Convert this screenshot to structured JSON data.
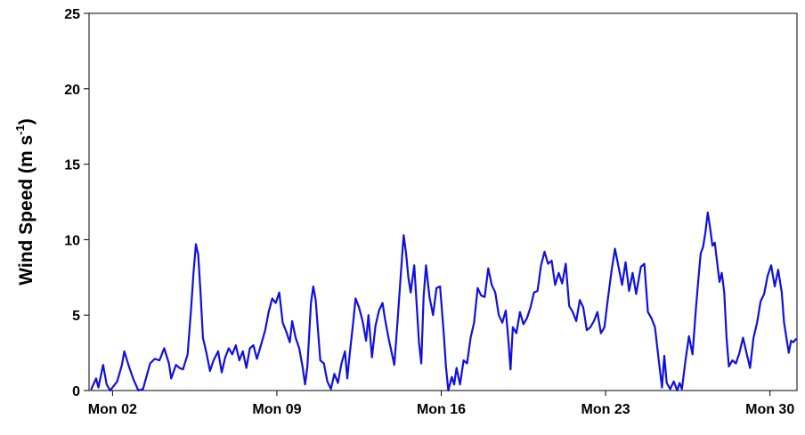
{
  "chart_data": {
    "type": "line",
    "title": "",
    "xlabel": "",
    "ylabel_main": "Wind Speed (m s",
    "ylabel_sup": "-1",
    "ylabel_tail": ")",
    "ylim": [
      0,
      25
    ],
    "yticks": [
      0,
      5,
      10,
      15,
      20,
      25
    ],
    "xlim_days": [
      1,
      31.15
    ],
    "xticks": [
      {
        "day": 2,
        "label": "Mon 02"
      },
      {
        "day": 9,
        "label": "Mon 09"
      },
      {
        "day": 16,
        "label": "Mon 16"
      },
      {
        "day": 23,
        "label": "Mon 23"
      },
      {
        "day": 30,
        "label": "Mon 30"
      }
    ],
    "grid": false,
    "series": [
      {
        "color": "#1010e0",
        "points": [
          [
            1.1,
            0.1
          ],
          [
            1.3,
            0.8
          ],
          [
            1.4,
            0.2
          ],
          [
            1.6,
            1.7
          ],
          [
            1.75,
            0.4
          ],
          [
            1.9,
            0.0
          ],
          [
            2.2,
            0.6
          ],
          [
            2.4,
            1.7
          ],
          [
            2.5,
            2.6
          ],
          [
            2.7,
            1.6
          ],
          [
            2.9,
            0.7
          ],
          [
            3.1,
            0.0
          ],
          [
            3.3,
            0.1
          ],
          [
            3.6,
            1.8
          ],
          [
            3.8,
            2.1
          ],
          [
            4.0,
            2.0
          ],
          [
            4.2,
            2.8
          ],
          [
            4.4,
            1.8
          ],
          [
            4.5,
            0.8
          ],
          [
            4.7,
            1.7
          ],
          [
            4.85,
            1.5
          ],
          [
            5.0,
            1.4
          ],
          [
            5.2,
            2.4
          ],
          [
            5.35,
            5.5
          ],
          [
            5.45,
            7.8
          ],
          [
            5.55,
            9.7
          ],
          [
            5.65,
            9.0
          ],
          [
            5.75,
            6.5
          ],
          [
            5.85,
            3.5
          ],
          [
            6.0,
            2.5
          ],
          [
            6.15,
            1.3
          ],
          [
            6.3,
            2.0
          ],
          [
            6.5,
            2.6
          ],
          [
            6.65,
            1.2
          ],
          [
            6.8,
            2.2
          ],
          [
            6.95,
            2.8
          ],
          [
            7.1,
            2.4
          ],
          [
            7.25,
            3.0
          ],
          [
            7.4,
            2.0
          ],
          [
            7.55,
            2.6
          ],
          [
            7.7,
            1.5
          ],
          [
            7.85,
            2.8
          ],
          [
            8.0,
            3.0
          ],
          [
            8.15,
            2.1
          ],
          [
            8.3,
            2.9
          ],
          [
            8.5,
            4.0
          ],
          [
            8.65,
            5.2
          ],
          [
            8.8,
            6.1
          ],
          [
            8.95,
            5.8
          ],
          [
            9.1,
            6.5
          ],
          [
            9.25,
            4.5
          ],
          [
            9.4,
            3.9
          ],
          [
            9.55,
            3.2
          ],
          [
            9.65,
            4.6
          ],
          [
            9.8,
            3.5
          ],
          [
            9.95,
            2.8
          ],
          [
            10.1,
            1.5
          ],
          [
            10.2,
            0.4
          ],
          [
            10.3,
            1.6
          ],
          [
            10.45,
            5.8
          ],
          [
            10.55,
            6.9
          ],
          [
            10.65,
            6.0
          ],
          [
            10.75,
            4.0
          ],
          [
            10.85,
            2.0
          ],
          [
            11.0,
            1.8
          ],
          [
            11.15,
            0.6
          ],
          [
            11.3,
            0.1
          ],
          [
            11.45,
            1.1
          ],
          [
            11.6,
            0.5
          ],
          [
            11.75,
            1.8
          ],
          [
            11.9,
            2.6
          ],
          [
            12.0,
            0.8
          ],
          [
            12.1,
            2.4
          ],
          [
            12.25,
            4.5
          ],
          [
            12.35,
            6.1
          ],
          [
            12.5,
            5.5
          ],
          [
            12.65,
            4.6
          ],
          [
            12.8,
            3.3
          ],
          [
            12.9,
            5.0
          ],
          [
            13.05,
            2.2
          ],
          [
            13.2,
            4.3
          ],
          [
            13.35,
            5.3
          ],
          [
            13.5,
            5.8
          ],
          [
            13.6,
            4.8
          ],
          [
            13.75,
            3.5
          ],
          [
            13.85,
            2.8
          ],
          [
            14.0,
            1.7
          ],
          [
            14.15,
            4.8
          ],
          [
            14.3,
            8.2
          ],
          [
            14.4,
            10.3
          ],
          [
            14.5,
            9.1
          ],
          [
            14.6,
            7.5
          ],
          [
            14.7,
            6.5
          ],
          [
            14.85,
            8.3
          ],
          [
            14.95,
            5.8
          ],
          [
            15.05,
            3.2
          ],
          [
            15.15,
            1.8
          ],
          [
            15.25,
            6.2
          ],
          [
            15.35,
            8.3
          ],
          [
            15.5,
            6.2
          ],
          [
            15.65,
            5.0
          ],
          [
            15.8,
            6.8
          ],
          [
            15.95,
            6.9
          ],
          [
            16.1,
            3.9
          ],
          [
            16.2,
            1.6
          ],
          [
            16.3,
            0.0
          ],
          [
            16.45,
            0.9
          ],
          [
            16.55,
            0.4
          ],
          [
            16.65,
            1.5
          ],
          [
            16.8,
            0.4
          ],
          [
            16.95,
            2.0
          ],
          [
            17.1,
            1.8
          ],
          [
            17.25,
            3.5
          ],
          [
            17.4,
            4.5
          ],
          [
            17.55,
            6.8
          ],
          [
            17.7,
            6.3
          ],
          [
            17.85,
            6.2
          ],
          [
            18.0,
            8.1
          ],
          [
            18.15,
            7.0
          ],
          [
            18.3,
            6.5
          ],
          [
            18.45,
            5.0
          ],
          [
            18.6,
            4.5
          ],
          [
            18.75,
            5.3
          ],
          [
            18.85,
            3.5
          ],
          [
            18.95,
            1.4
          ],
          [
            19.05,
            4.2
          ],
          [
            19.2,
            3.8
          ],
          [
            19.35,
            5.2
          ],
          [
            19.5,
            4.4
          ],
          [
            19.65,
            4.8
          ],
          [
            19.8,
            5.5
          ],
          [
            19.95,
            6.5
          ],
          [
            20.1,
            6.6
          ],
          [
            20.25,
            8.3
          ],
          [
            20.4,
            9.2
          ],
          [
            20.55,
            8.4
          ],
          [
            20.7,
            8.6
          ],
          [
            20.85,
            7.0
          ],
          [
            21.0,
            7.8
          ],
          [
            21.15,
            7.1
          ],
          [
            21.3,
            8.4
          ],
          [
            21.45,
            5.6
          ],
          [
            21.6,
            5.2
          ],
          [
            21.75,
            4.6
          ],
          [
            21.9,
            6.0
          ],
          [
            22.05,
            5.5
          ],
          [
            22.2,
            4.0
          ],
          [
            22.35,
            4.2
          ],
          [
            22.5,
            4.6
          ],
          [
            22.65,
            5.2
          ],
          [
            22.8,
            3.8
          ],
          [
            22.95,
            4.2
          ],
          [
            23.1,
            6.1
          ],
          [
            23.25,
            7.9
          ],
          [
            23.4,
            9.4
          ],
          [
            23.55,
            8.2
          ],
          [
            23.7,
            7.0
          ],
          [
            23.85,
            8.5
          ],
          [
            24.0,
            6.6
          ],
          [
            24.15,
            7.8
          ],
          [
            24.3,
            6.4
          ],
          [
            24.5,
            8.2
          ],
          [
            24.65,
            8.4
          ],
          [
            24.8,
            5.2
          ],
          [
            24.95,
            4.8
          ],
          [
            25.1,
            4.2
          ],
          [
            25.25,
            2.2
          ],
          [
            25.4,
            0.2
          ],
          [
            25.5,
            2.3
          ],
          [
            25.6,
            0.5
          ],
          [
            25.75,
            0.1
          ],
          [
            25.9,
            0.6
          ],
          [
            26.05,
            0.0
          ],
          [
            26.15,
            0.5
          ],
          [
            26.25,
            0.1
          ],
          [
            26.4,
            2.0
          ],
          [
            26.55,
            3.6
          ],
          [
            26.7,
            2.4
          ],
          [
            26.85,
            5.5
          ],
          [
            26.95,
            7.4
          ],
          [
            27.05,
            9.1
          ],
          [
            27.15,
            9.5
          ],
          [
            27.25,
            10.5
          ],
          [
            27.35,
            11.8
          ],
          [
            27.45,
            10.8
          ],
          [
            27.55,
            9.6
          ],
          [
            27.65,
            9.8
          ],
          [
            27.75,
            8.5
          ],
          [
            27.85,
            7.2
          ],
          [
            27.95,
            7.8
          ],
          [
            28.05,
            6.5
          ],
          [
            28.15,
            3.5
          ],
          [
            28.25,
            1.6
          ],
          [
            28.4,
            2.0
          ],
          [
            28.55,
            1.8
          ],
          [
            28.7,
            2.5
          ],
          [
            28.85,
            3.5
          ],
          [
            29.0,
            2.5
          ],
          [
            29.15,
            1.5
          ],
          [
            29.3,
            3.5
          ],
          [
            29.45,
            4.5
          ],
          [
            29.6,
            5.9
          ],
          [
            29.75,
            6.4
          ],
          [
            29.9,
            7.6
          ],
          [
            30.05,
            8.3
          ],
          [
            30.2,
            6.9
          ],
          [
            30.35,
            8.0
          ],
          [
            30.5,
            6.5
          ],
          [
            30.6,
            4.5
          ],
          [
            30.7,
            3.5
          ],
          [
            30.8,
            2.5
          ],
          [
            30.9,
            3.3
          ],
          [
            31.0,
            3.2
          ],
          [
            31.1,
            3.4
          ]
        ]
      }
    ]
  }
}
